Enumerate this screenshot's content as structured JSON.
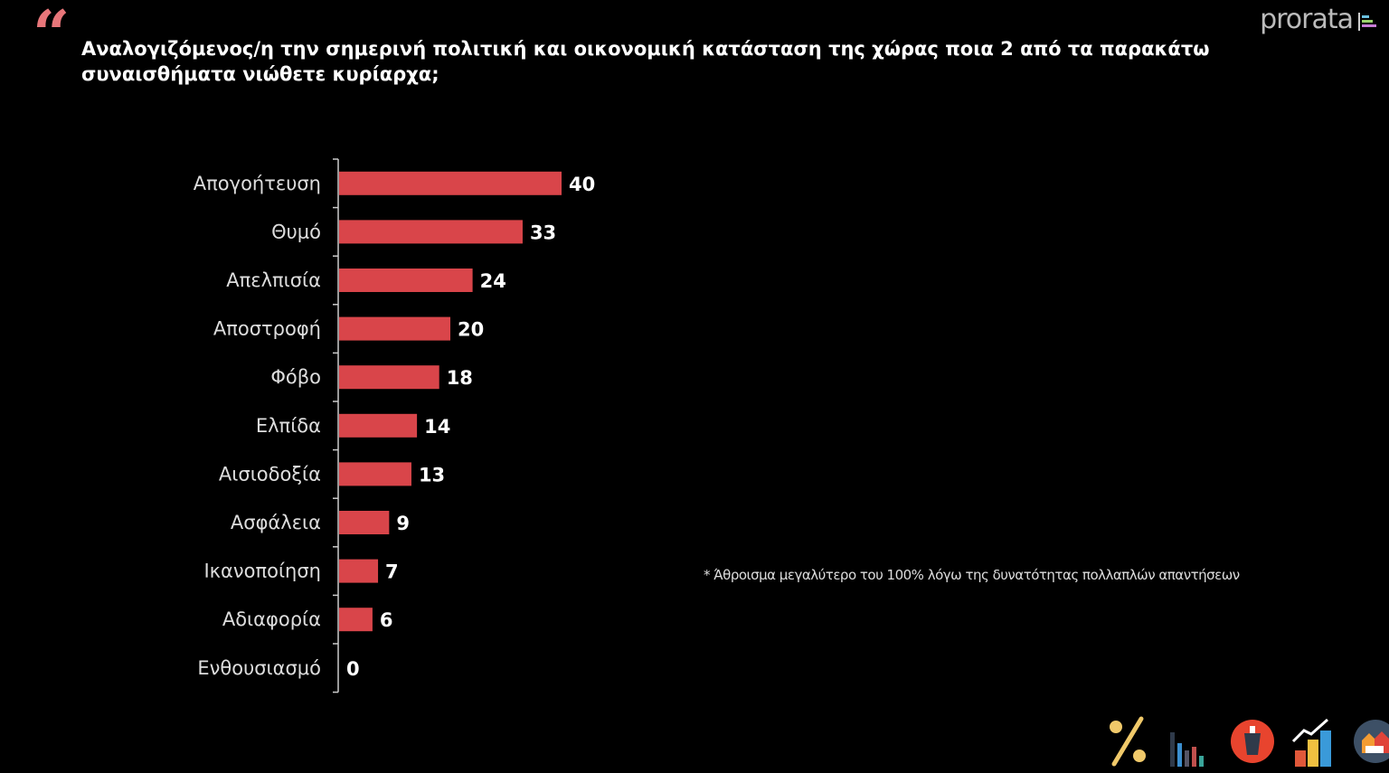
{
  "header": {
    "quote_mark": "“",
    "logo": "prorata"
  },
  "chart_data": {
    "type": "bar",
    "orientation": "horizontal",
    "title": "Αναλογιζόμενος/η την σημερινή πολιτική και οικονομική κατάσταση της χώρας ποια 2 από τα παρακάτω συναισθήματα νιώθετε κυρίαρχα;",
    "categories": [
      "Απογοήτευση",
      "Θυμό",
      "Απελπισία",
      "Αποστροφή",
      "Φόβο",
      "Ελπίδα",
      "Αισιοδοξία",
      "Ασφάλεια",
      "Ικανοποίηση",
      "Αδιαφορία",
      "Ενθουσιασμό"
    ],
    "values": [
      40,
      33,
      24,
      20,
      18,
      14,
      13,
      9,
      7,
      6,
      0
    ],
    "xlim": [
      0,
      40
    ],
    "color": "#d9454a",
    "grid": false,
    "annotation": "* Άθροισμα μεγαλύτερο του 100% λόγω της δυνατότητας πολλαπλών απαντήσεων"
  },
  "footer_icons": [
    "percent-icon",
    "bar-chart-icon",
    "ballot-box-icon",
    "growth-chart-icon",
    "community-icon"
  ]
}
